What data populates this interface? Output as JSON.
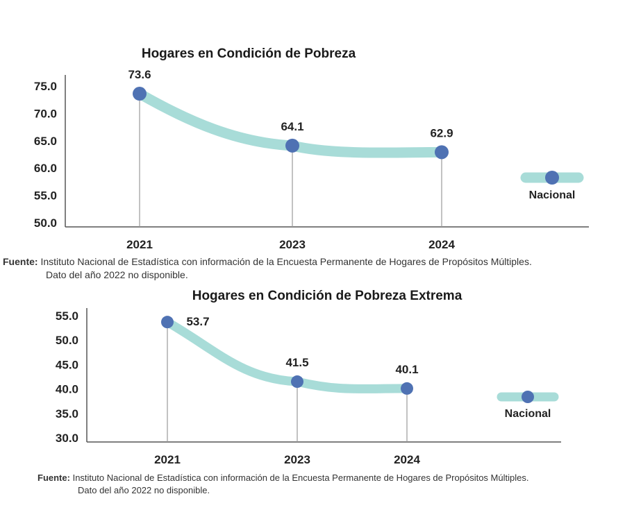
{
  "chart_data": [
    {
      "type": "line",
      "title": "Hogares en Condición de Pobreza",
      "categories": [
        "2021",
        "2023",
        "2024"
      ],
      "series": [
        {
          "name": "Nacional",
          "values": [
            73.6,
            64.1,
            62.9
          ]
        }
      ],
      "data_labels": [
        "73.6",
        "64.1",
        "62.9"
      ],
      "yticks": [
        "75.0",
        "70.0",
        "65.0",
        "60.0",
        "55.0",
        "50.0"
      ],
      "ylim": [
        50,
        75
      ],
      "xlabel": "",
      "ylabel": "",
      "grid": false,
      "legend": "right",
      "colors": {
        "line": "#a8dcd8",
        "marker": "#4f72b3"
      }
    },
    {
      "type": "line",
      "title": "Hogares en Condición de Pobreza Extrema",
      "categories": [
        "2021",
        "2023",
        "2024"
      ],
      "series": [
        {
          "name": "Nacional",
          "values": [
            53.7,
            41.5,
            40.1
          ]
        }
      ],
      "data_labels": [
        "53.7",
        "41.5",
        "40.1"
      ],
      "yticks": [
        "55.0",
        "50.0",
        "45.0",
        "40.0",
        "35.0",
        "30.0"
      ],
      "ylim": [
        30,
        55
      ],
      "xlabel": "",
      "ylabel": "",
      "grid": false,
      "legend": "right",
      "colors": {
        "line": "#a8dcd8",
        "marker": "#4f72b3"
      }
    }
  ],
  "sources": [
    {
      "prefix": "Fuente:",
      "text": "Instituto Nacional de Estadística con información de la Encuesta Permanente de Hogares de Propósitos Múltiples.",
      "note": "Dato del año 2022 no disponible."
    },
    {
      "prefix": "Fuente:",
      "text": "Instituto Nacional de Estadística con información de la Encuesta Permanente de Hogares de Propósitos Múltiples.",
      "note": "Dato del año 2022 no disponible."
    }
  ]
}
